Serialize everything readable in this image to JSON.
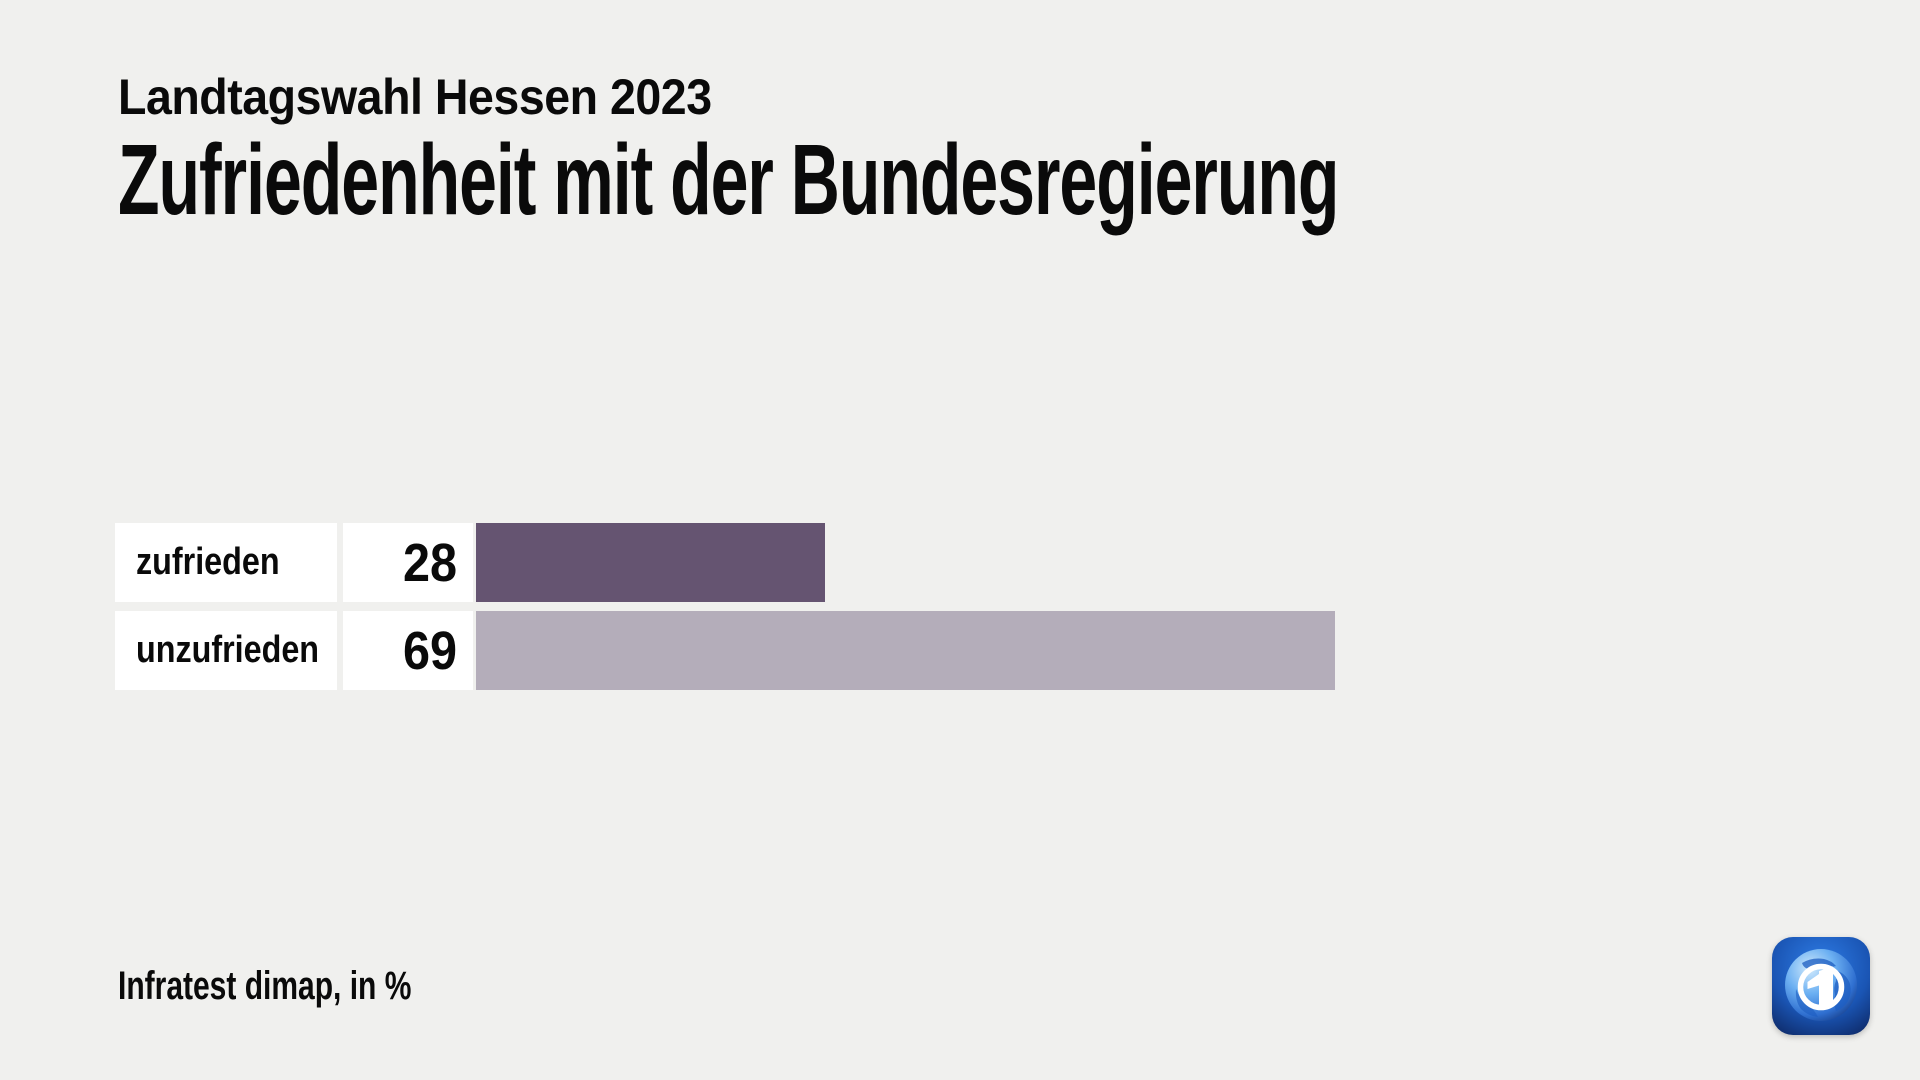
{
  "header": {
    "pretitle": "Landtagswahl Hessen 2023",
    "title": "Zufriedenheit mit der Bundesregierung"
  },
  "source_note": "Infratest dimap, in %",
  "icons": {
    "brand": "ard-tagesschau-globe-logo"
  },
  "colors": {
    "background": "#f0f0ee",
    "box": "#ffffff",
    "text": "#0a0a0a",
    "bar_zufrieden": "#655471",
    "bar_unzufrieden": "#b4adba"
  },
  "chart_data": {
    "type": "bar",
    "orientation": "horizontal",
    "title": "Zufriedenheit mit der Bundesregierung",
    "subtitle": "Landtagswahl Hessen 2023",
    "source": "Infratest dimap, in %",
    "categories": [
      "zufrieden",
      "unzufrieden"
    ],
    "values": [
      28,
      69
    ],
    "unit": "%",
    "xlim": [
      0,
      100
    ],
    "bar_colors": [
      "#655471",
      "#b4adba"
    ],
    "value_labels_shown": true,
    "grid": false,
    "legend": false
  }
}
